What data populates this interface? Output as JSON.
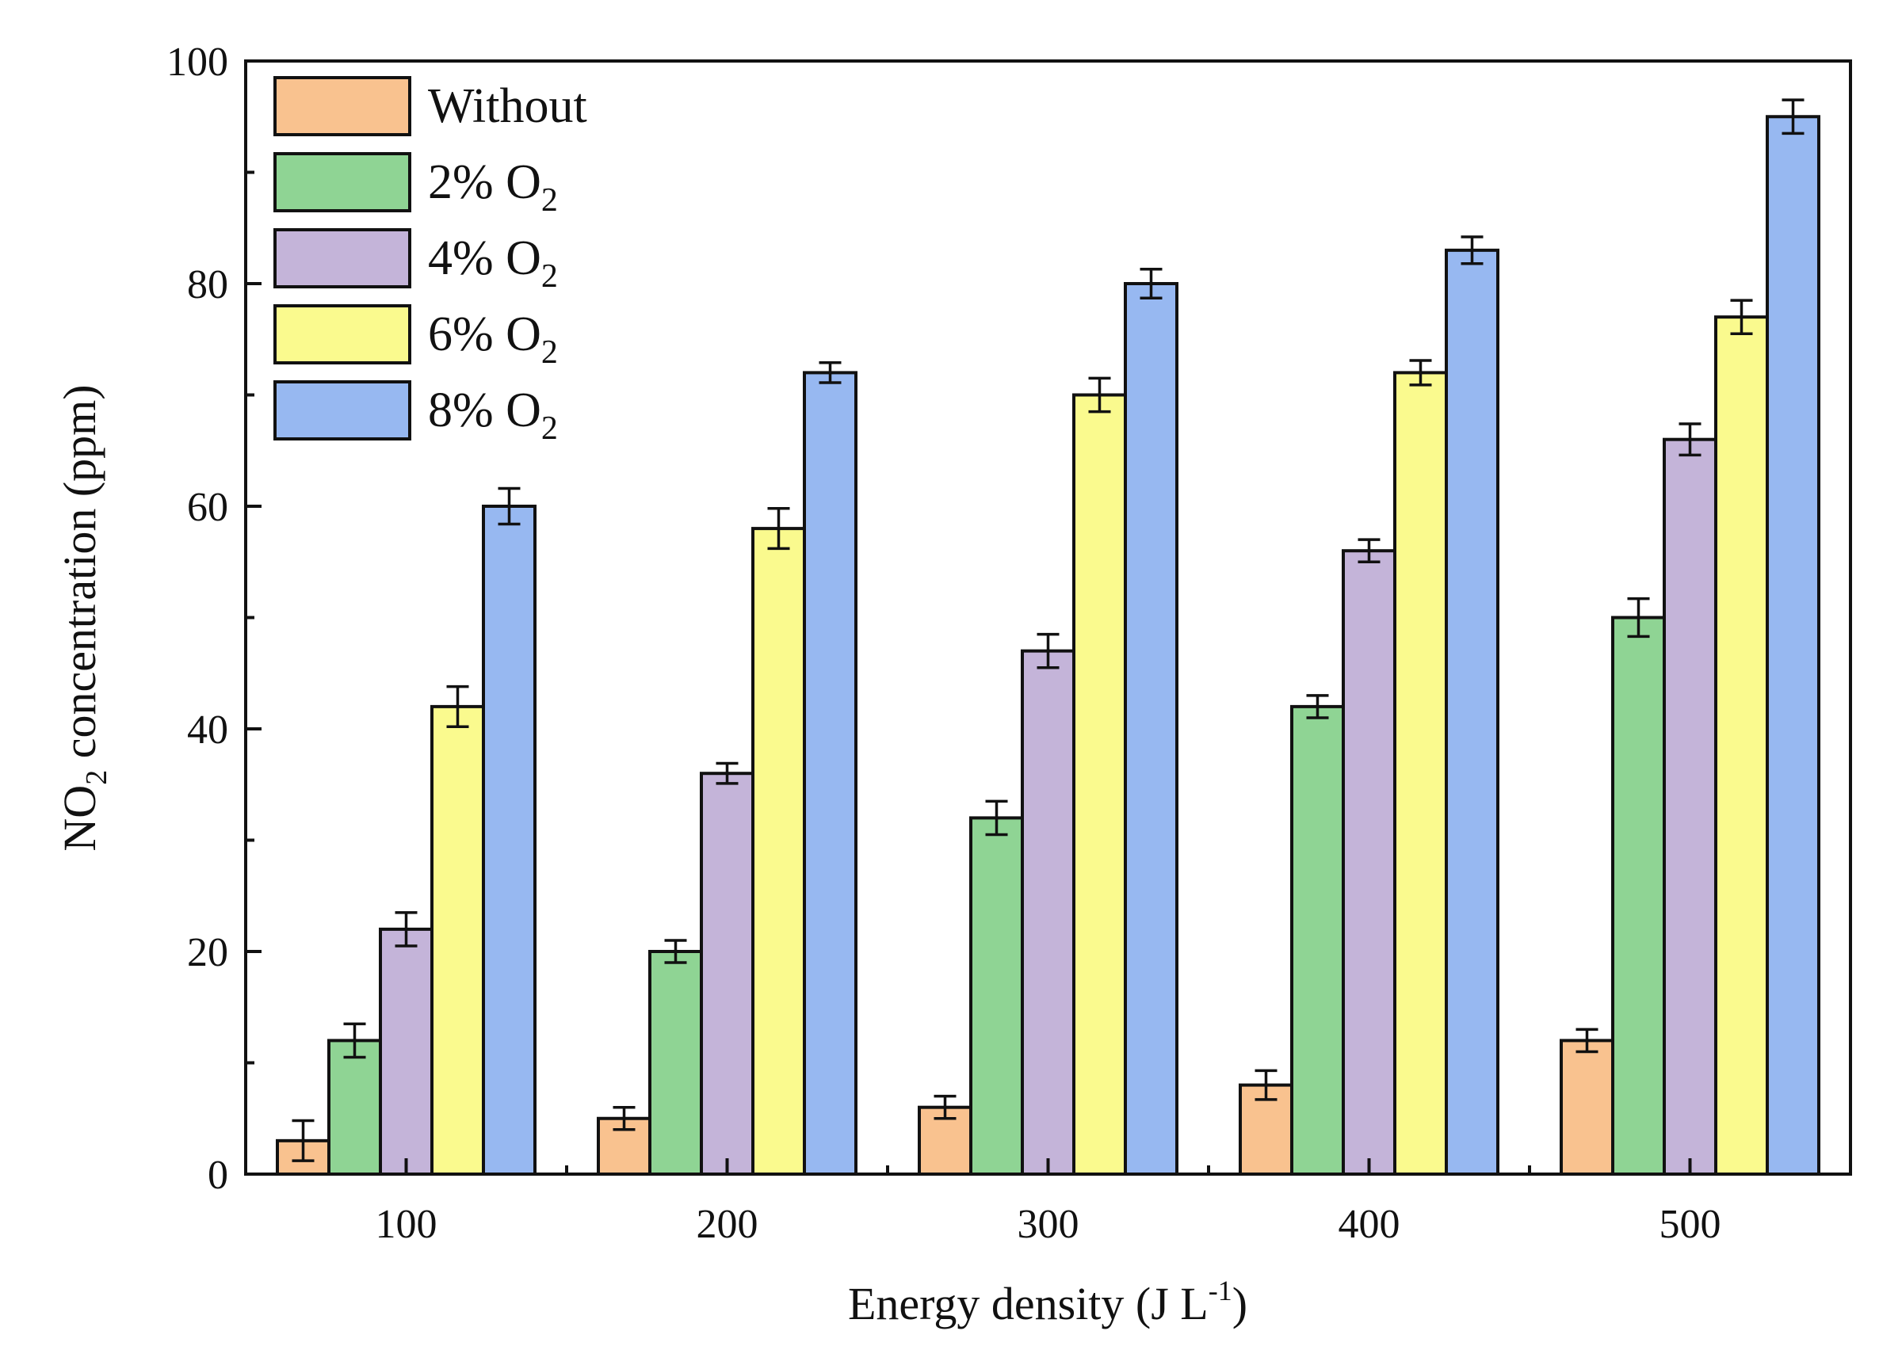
{
  "chart_data": {
    "type": "bar",
    "title": "",
    "xlabel": "Energy density (J L",
    "xlabel_sup": "-1",
    "xlabel_end": ")",
    "ylabel": "NO",
    "ylabel_sub": "2",
    "ylabel_end": " concentration (ppm)",
    "ylim": [
      0,
      100
    ],
    "yticks": [
      "0",
      "20",
      "40",
      "60",
      "80",
      "100"
    ],
    "categories": [
      "100",
      "200",
      "300",
      "400",
      "500"
    ],
    "legend_position": "top-left",
    "series": [
      {
        "name": "Without",
        "name_sub": "",
        "color": "#f9c28f",
        "values": [
          3,
          5,
          6,
          8,
          12
        ],
        "errors": [
          1.8,
          1.0,
          1.0,
          1.3,
          1.0
        ]
      },
      {
        "name": "2% O",
        "name_sub": "2",
        "color": "#8fd494",
        "values": [
          12,
          20,
          32,
          42,
          50
        ],
        "errors": [
          1.5,
          1.0,
          1.5,
          1.0,
          1.7
        ]
      },
      {
        "name": "4% O",
        "name_sub": "2",
        "color": "#c4b4d9",
        "values": [
          22,
          36,
          47,
          56,
          66
        ],
        "errors": [
          1.5,
          0.9,
          1.5,
          1.0,
          1.4
        ]
      },
      {
        "name": "6% O",
        "name_sub": "2",
        "color": "#fafa8e",
        "values": [
          42,
          58,
          70,
          72,
          77
        ],
        "errors": [
          1.8,
          1.8,
          1.5,
          1.1,
          1.5
        ]
      },
      {
        "name": "8% O",
        "name_sub": "2",
        "color": "#97b8f1",
        "values": [
          60,
          72,
          80,
          83,
          95
        ],
        "errors": [
          1.6,
          0.9,
          1.3,
          1.2,
          1.5
        ]
      }
    ]
  }
}
